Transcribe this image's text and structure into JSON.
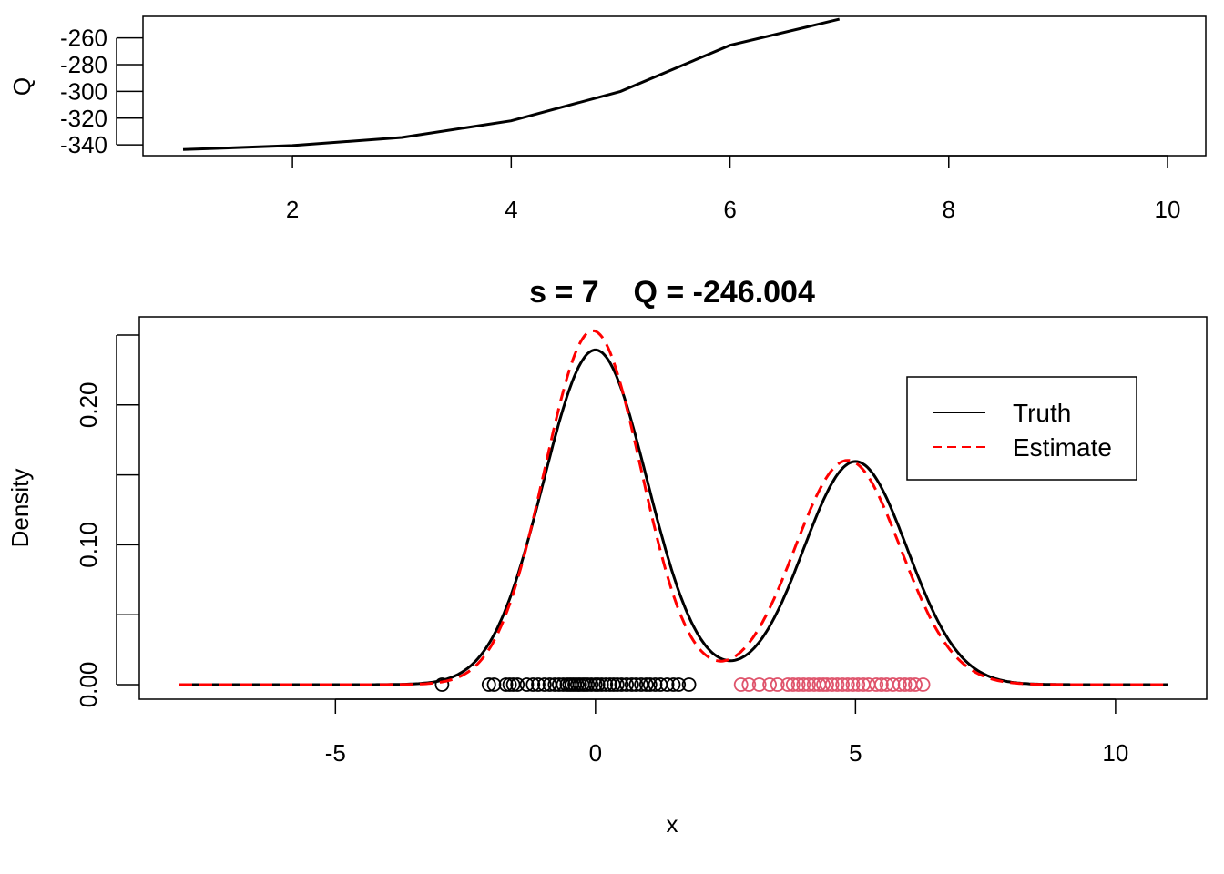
{
  "chart_data": [
    {
      "type": "line",
      "xlim": [
        1,
        10
      ],
      "ylim": [
        -344,
        -248
      ],
      "xticks": [
        2,
        4,
        6,
        8,
        10
      ],
      "yticks": [
        -260,
        -280,
        -300,
        -320,
        -340
      ],
      "ylabel": "Q",
      "xlabel": "",
      "title": "",
      "grid": false,
      "series": [
        {
          "name": "",
          "color": "#000000",
          "x": [
            1,
            2,
            3,
            4,
            5,
            6,
            7
          ],
          "y": [
            -343.5,
            -340.5,
            -334.5,
            -322,
            -300,
            -265.5,
            -246.004
          ]
        }
      ]
    },
    {
      "type": "line",
      "title": "s = 7    Q = -246.004",
      "xlabel": "x",
      "ylabel": "Density",
      "xlim": [
        -8,
        11
      ],
      "ylim": [
        0,
        0.25
      ],
      "xticks": [
        -5,
        0,
        5,
        10
      ],
      "yticks": [
        0,
        0.05,
        0.1,
        0.15,
        0.2,
        0.25
      ],
      "ytick_labels": [
        "0.00",
        "",
        "0.10",
        "",
        "0.20",
        ""
      ],
      "grid": false,
      "legend": {
        "placement": "top-right",
        "entries": [
          "Truth",
          "Estimate"
        ]
      },
      "series": [
        {
          "name": "Truth",
          "style": "solid",
          "color": "#000000",
          "components": [
            {
              "weight": 0.6,
              "mean": 0,
              "sd": 1
            },
            {
              "weight": 0.4,
              "mean": 5,
              "sd": 1
            }
          ]
        },
        {
          "name": "Estimate",
          "style": "dashed",
          "color": "#ff0000",
          "components": [
            {
              "weight": 0.59,
              "mean": -0.05,
              "sd": 0.93
            },
            {
              "weight": 0.41,
              "mean": 4.85,
              "sd": 1.02
            }
          ]
        }
      ],
      "points": [
        {
          "group": 1,
          "color": "#000000",
          "x": [
            -2.95,
            -2.05,
            -1.95,
            -1.72,
            -1.65,
            -1.58,
            -1.5,
            -1.32,
            -1.2,
            -1.1,
            -0.98,
            -0.88,
            -0.78,
            -0.7,
            -0.62,
            -0.55,
            -0.5,
            -0.45,
            -0.4,
            -0.35,
            -0.3,
            -0.25,
            -0.2,
            -0.15,
            -0.08,
            0.0,
            0.05,
            0.12,
            0.2,
            0.28,
            0.35,
            0.42,
            0.5,
            0.6,
            0.7,
            0.78,
            0.88,
            0.98,
            1.05,
            1.15,
            1.25,
            1.38,
            1.5,
            1.6,
            1.8
          ]
        },
        {
          "group": 2,
          "color": "#df536b",
          "x": [
            2.8,
            2.95,
            3.15,
            3.35,
            3.5,
            3.7,
            3.8,
            3.9,
            4.0,
            4.1,
            4.2,
            4.3,
            4.38,
            4.45,
            4.55,
            4.65,
            4.75,
            4.85,
            4.95,
            5.05,
            5.15,
            5.25,
            5.4,
            5.5,
            5.6,
            5.72,
            5.85,
            5.95,
            6.05,
            6.15,
            6.3
          ]
        }
      ]
    }
  ]
}
